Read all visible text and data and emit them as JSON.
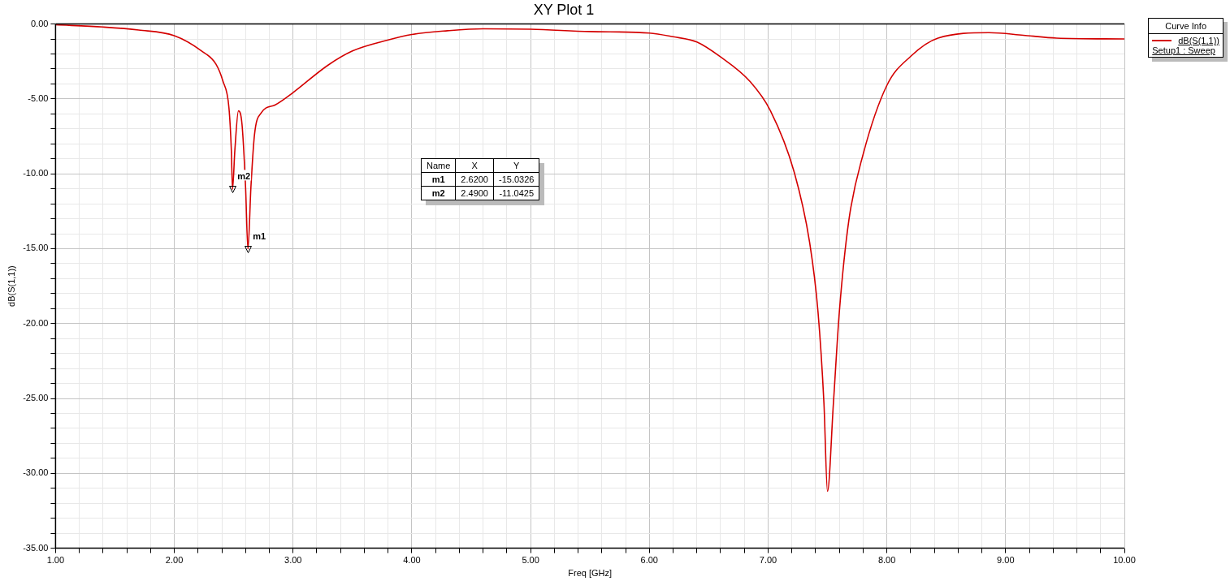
{
  "chart_data": {
    "type": "line",
    "title": "XY Plot 1",
    "xlabel": "Freq [GHz]",
    "ylabel": "dB(S(1,1))",
    "legend_title": "Curve Info",
    "series": [
      {
        "name": "dB(S(1,1))",
        "color": "#d40000",
        "x": [
          1.0,
          1.4,
          1.7,
          2.0,
          2.23,
          2.35,
          2.41,
          2.46,
          2.48,
          2.49,
          2.51,
          2.54,
          2.57,
          2.6,
          2.62,
          2.645,
          2.675,
          2.73,
          2.85,
          2.98,
          3.29,
          3.5,
          3.8,
          4.0,
          4.3,
          4.6,
          5.0,
          5.5,
          6.0,
          6.2,
          6.4,
          6.6,
          6.85,
          7.02,
          7.22,
          7.35,
          7.42,
          7.47,
          7.5,
          7.55,
          7.6,
          7.68,
          7.8,
          8.0,
          8.2,
          8.43,
          8.86,
          9.15,
          9.43,
          10.0
        ],
        "values": [
          -0.05,
          -0.2,
          -0.4,
          -0.78,
          -1.8,
          -2.67,
          -3.83,
          -5.6,
          -8.4,
          -11.04,
          -8.4,
          -5.8,
          -6.7,
          -10.9,
          -15.03,
          -10.9,
          -7.4,
          -5.95,
          -5.4,
          -4.7,
          -2.77,
          -1.8,
          -1.07,
          -0.7,
          -0.45,
          -0.32,
          -0.35,
          -0.5,
          -0.6,
          -0.85,
          -1.2,
          -2.2,
          -3.86,
          -5.8,
          -9.9,
          -14.6,
          -19.2,
          -25.3,
          -31.2,
          -25.3,
          -19.2,
          -13.1,
          -8.7,
          -4.1,
          -2.16,
          -0.94,
          -0.58,
          -0.75,
          -0.94,
          -1.0
        ]
      }
    ],
    "annotations": [
      {
        "text": "m1",
        "x": 2.62,
        "y": -15.0326
      },
      {
        "text": "m2",
        "x": 2.49,
        "y": -11.0425
      },
      "Name",
      "X",
      "Y",
      "m1",
      "2.6200",
      "-15.0326",
      "m2",
      "2.4900",
      "-11.0425",
      "Setup1 : Sweep"
    ],
    "xlim": [
      1,
      10
    ],
    "xticks": [
      {
        "value": 1,
        "label": "1.00"
      },
      {
        "value": 1.2,
        "label": null
      },
      {
        "value": 1.4,
        "label": null
      },
      {
        "value": 1.6,
        "label": null
      },
      {
        "value": 1.8,
        "label": null
      },
      {
        "value": 2,
        "label": "2.00"
      },
      {
        "value": 2.2,
        "label": null
      },
      {
        "value": 2.4,
        "label": null
      },
      {
        "value": 2.6,
        "label": null
      },
      {
        "value": 2.8,
        "label": null
      },
      {
        "value": 3,
        "label": "3.00"
      },
      {
        "value": 3.2,
        "label": null
      },
      {
        "value": 3.4,
        "label": null
      },
      {
        "value": 3.6,
        "label": null
      },
      {
        "value": 3.8,
        "label": null
      },
      {
        "value": 4,
        "label": "4.00"
      },
      {
        "value": 4.2,
        "label": null
      },
      {
        "value": 4.4,
        "label": null
      },
      {
        "value": 4.6,
        "label": null
      },
      {
        "value": 4.8,
        "label": null
      },
      {
        "value": 5,
        "label": "5.00"
      },
      {
        "value": 5.2,
        "label": null
      },
      {
        "value": 5.4,
        "label": null
      },
      {
        "value": 5.6,
        "label": null
      },
      {
        "value": 5.8,
        "label": null
      },
      {
        "value": 6,
        "label": "6.00"
      },
      {
        "value": 6.2,
        "label": null
      },
      {
        "value": 6.4,
        "label": null
      },
      {
        "value": 6.6,
        "label": null
      },
      {
        "value": 6.8,
        "label": null
      },
      {
        "value": 7,
        "label": "7.00"
      },
      {
        "value": 7.2,
        "label": null
      },
      {
        "value": 7.4,
        "label": null
      },
      {
        "value": 7.6,
        "label": null
      },
      {
        "value": 7.8,
        "label": null
      },
      {
        "value": 8,
        "label": "8.00"
      },
      {
        "value": 8.2,
        "label": null
      },
      {
        "value": 8.4,
        "label": null
      },
      {
        "value": 8.6,
        "label": null
      },
      {
        "value": 8.8,
        "label": null
      },
      {
        "value": 9,
        "label": "9.00"
      },
      {
        "value": 9.2,
        "label": null
      },
      {
        "value": 9.4,
        "label": null
      },
      {
        "value": 9.6,
        "label": null
      },
      {
        "value": 9.8,
        "label": null
      },
      {
        "value": 10,
        "label": "10.00"
      }
    ],
    "ylim": [
      -35,
      0
    ],
    "yticks": [
      {
        "value": -35,
        "label": "-35.00"
      },
      {
        "value": -34,
        "label": null
      },
      {
        "value": -33,
        "label": null
      },
      {
        "value": -32,
        "label": null
      },
      {
        "value": -31,
        "label": null
      },
      {
        "value": -30,
        "label": "-30.00"
      },
      {
        "value": -29,
        "label": null
      },
      {
        "value": -28,
        "label": null
      },
      {
        "value": -27,
        "label": null
      },
      {
        "value": -26,
        "label": null
      },
      {
        "value": -25,
        "label": "-25.00"
      },
      {
        "value": -24,
        "label": null
      },
      {
        "value": -23,
        "label": null
      },
      {
        "value": -22,
        "label": null
      },
      {
        "value": -21,
        "label": null
      },
      {
        "value": -20,
        "label": "-20.00"
      },
      {
        "value": -19,
        "label": null
      },
      {
        "value": -18,
        "label": null
      },
      {
        "value": -17,
        "label": null
      },
      {
        "value": -16,
        "label": null
      },
      {
        "value": -15,
        "label": "-15.00"
      },
      {
        "value": -14,
        "label": null
      },
      {
        "value": -13,
        "label": null
      },
      {
        "value": -12,
        "label": null
      },
      {
        "value": -11,
        "label": null
      },
      {
        "value": -10,
        "label": "-10.00"
      },
      {
        "value": -9,
        "label": null
      },
      {
        "value": -8,
        "label": null
      },
      {
        "value": -7,
        "label": null
      },
      {
        "value": -6,
        "label": null
      },
      {
        "value": -5,
        "label": "-5.00"
      },
      {
        "value": -4,
        "label": null
      },
      {
        "value": -3,
        "label": null
      },
      {
        "value": -2,
        "label": null
      },
      {
        "value": -1,
        "label": null
      },
      {
        "value": 0,
        "label": "0.00"
      }
    ],
    "grid": true,
    "legend": "top right",
    "marker": "none",
    "line_style": "solid"
  }
}
